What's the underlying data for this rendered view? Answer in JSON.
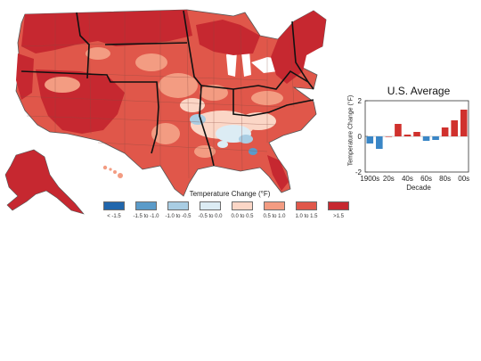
{
  "colors": {
    "gt_1_5": "#c62830",
    "c_1_0_1_5": "#e0574a",
    "c_0_5_1_0": "#f39c82",
    "c_0_0_0_5": "#fbd6c6",
    "c_neg_0_5_0_0": "#dcecf4",
    "c_neg_1_0_neg_0_5": "#a9cde3",
    "c_neg_1_5_neg_1_0": "#5b9bc9",
    "lt_neg_1_5": "#2166ac",
    "border": "#111111"
  },
  "legend": {
    "title": "Temperature Change (°F)",
    "items": [
      {
        "label": "< -1.5",
        "color": "#2166ac"
      },
      {
        "label": "-1.5 to -1.0",
        "color": "#5b9bc9"
      },
      {
        "label": "-1.0 to -0.5",
        "color": "#a9cde3"
      },
      {
        "label": "-0.5 to 0.0",
        "color": "#dcecf4"
      },
      {
        "label": "0.0 to 0.5",
        "color": "#fbd6c6"
      },
      {
        "label": "0.5 to 1.0",
        "color": "#f39c82"
      },
      {
        "label": "1.0 to 1.5",
        "color": "#e0574a"
      },
      {
        "label": ">1.5",
        "color": "#c62830"
      }
    ]
  },
  "chart_data": {
    "type": "bar",
    "title": "U.S. Average",
    "xlabel": "Decade",
    "ylabel": "Temperature Change (°F)",
    "ylim": [
      -2,
      2
    ],
    "yticks": [
      -2,
      0,
      2
    ],
    "x_tick_labels": [
      "1900s",
      "20s",
      "40s",
      "60s",
      "80s",
      "00s"
    ],
    "categories": [
      "1900s",
      "1910s",
      "1920s",
      "1930s",
      "1940s",
      "1950s",
      "1960s",
      "1970s",
      "1980s",
      "1990s",
      "2000s"
    ],
    "values": [
      -0.4,
      -0.7,
      0.0,
      0.7,
      0.1,
      0.25,
      -0.25,
      -0.2,
      0.5,
      0.9,
      1.5
    ],
    "positive_color": "#d0312d",
    "negative_color": "#3a86c6"
  }
}
